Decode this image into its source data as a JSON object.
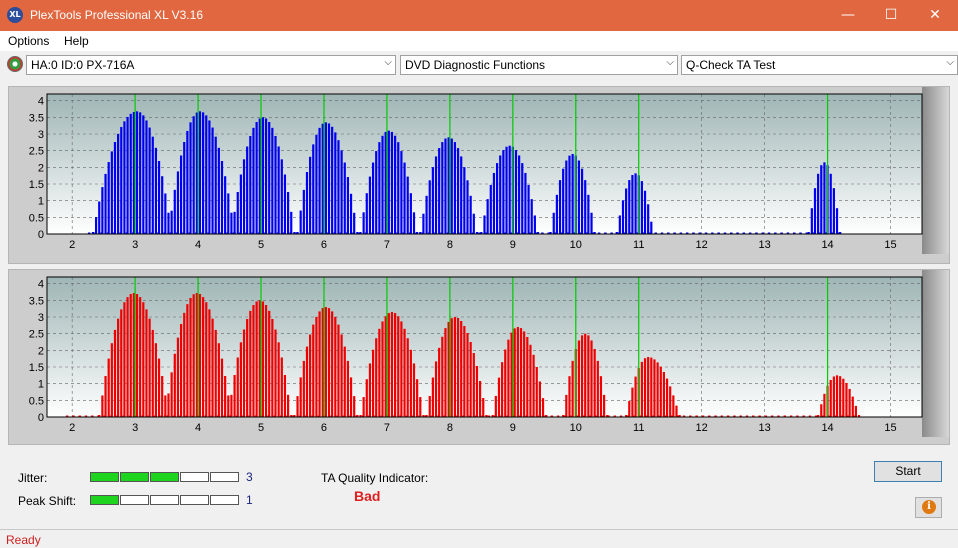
{
  "window": {
    "title": "PlexTools Professional XL V3.16",
    "icon_text": "XL",
    "minimize_glyph": "—",
    "maximize_glyph": "☐",
    "close_glyph": "✕"
  },
  "menu": {
    "items": [
      "Options",
      "Help"
    ]
  },
  "toolbar": {
    "drive": "HA:0 ID:0  PX-716A",
    "function": "DVD Diagnostic Functions",
    "test": "Q-Check TA Test",
    "arrow_glyph": "⌵"
  },
  "chart_data": [
    {
      "type": "bar",
      "name": "upper",
      "color": "#0000ee",
      "marker_color": "#00cc00",
      "x_ticks": [
        "2",
        "3",
        "4",
        "5",
        "6",
        "7",
        "8",
        "9",
        "10",
        "11",
        "12",
        "13",
        "14",
        "15"
      ],
      "y_ticks": [
        "0",
        "0.5",
        "1",
        "1.5",
        "2",
        "2.5",
        "3",
        "3.5",
        "4"
      ],
      "xlim": [
        1.6,
        15.5
      ],
      "ylim": [
        0,
        4.2
      ],
      "grid": true,
      "markers": [
        3,
        4,
        5,
        6,
        7,
        8,
        9,
        10,
        11,
        14
      ],
      "baseline_from": 2.25,
      "baseline_to": 14.2,
      "peaks": [
        {
          "center": 3.03,
          "height": 3.68,
          "left": 0.7,
          "right": 0.55
        },
        {
          "center": 4.03,
          "height": 3.68,
          "left": 0.5,
          "right": 0.55
        },
        {
          "center": 5.03,
          "height": 3.5,
          "left": 0.5,
          "right": 0.5
        },
        {
          "center": 6.03,
          "height": 3.35,
          "left": 0.45,
          "right": 0.5
        },
        {
          "center": 7.03,
          "height": 3.1,
          "left": 0.45,
          "right": 0.45
        },
        {
          "center": 7.98,
          "height": 2.9,
          "left": 0.45,
          "right": 0.45
        },
        {
          "center": 8.95,
          "height": 2.65,
          "left": 0.45,
          "right": 0.45
        },
        {
          "center": 9.95,
          "height": 2.4,
          "left": 0.35,
          "right": 0.35
        },
        {
          "center": 10.95,
          "height": 1.82,
          "left": 0.3,
          "right": 0.28
        },
        {
          "center": 13.95,
          "height": 2.15,
          "left": 0.25,
          "right": 0.25
        }
      ]
    },
    {
      "type": "bar",
      "name": "lower",
      "color": "#ee0000",
      "marker_color": "#00cc00",
      "x_ticks": [
        "2",
        "3",
        "4",
        "5",
        "6",
        "7",
        "8",
        "9",
        "10",
        "11",
        "12",
        "13",
        "14",
        "15"
      ],
      "y_ticks": [
        "0",
        "0.5",
        "1",
        "1.5",
        "2",
        "2.5",
        "3",
        "3.5",
        "4"
      ],
      "xlim": [
        1.6,
        15.5
      ],
      "ylim": [
        0,
        4.2
      ],
      "grid": true,
      "markers": [
        3,
        4,
        5,
        6,
        7,
        8,
        9,
        10,
        11,
        14
      ],
      "baseline_from": 1.9,
      "baseline_to": 14.4,
      "peaks": [
        {
          "center": 2.98,
          "height": 3.72,
          "left": 0.55,
          "right": 0.55
        },
        {
          "center": 3.98,
          "height": 3.72,
          "left": 0.5,
          "right": 0.55
        },
        {
          "center": 4.98,
          "height": 3.5,
          "left": 0.5,
          "right": 0.5
        },
        {
          "center": 6.03,
          "height": 3.3,
          "left": 0.5,
          "right": 0.5
        },
        {
          "center": 7.08,
          "height": 3.15,
          "left": 0.5,
          "right": 0.5
        },
        {
          "center": 8.08,
          "height": 3.0,
          "left": 0.45,
          "right": 0.5
        },
        {
          "center": 9.08,
          "height": 2.7,
          "left": 0.4,
          "right": 0.45
        },
        {
          "center": 10.15,
          "height": 2.5,
          "left": 0.35,
          "right": 0.35
        },
        {
          "center": 11.15,
          "height": 1.8,
          "left": 0.35,
          "right": 0.5
        },
        {
          "center": 14.15,
          "height": 1.25,
          "left": 0.3,
          "right": 0.35
        }
      ]
    }
  ],
  "metrics": {
    "jitter": {
      "label": "Jitter:",
      "value": "3",
      "level": 3,
      "max": 5
    },
    "peak_shift": {
      "label": "Peak Shift:",
      "value": "1",
      "level": 1,
      "max": 5
    }
  },
  "ta_quality": {
    "label": "TA Quality Indicator:",
    "value": "Bad"
  },
  "buttons": {
    "start": "Start",
    "info_glyph": "i"
  },
  "status": {
    "text": "Ready"
  }
}
